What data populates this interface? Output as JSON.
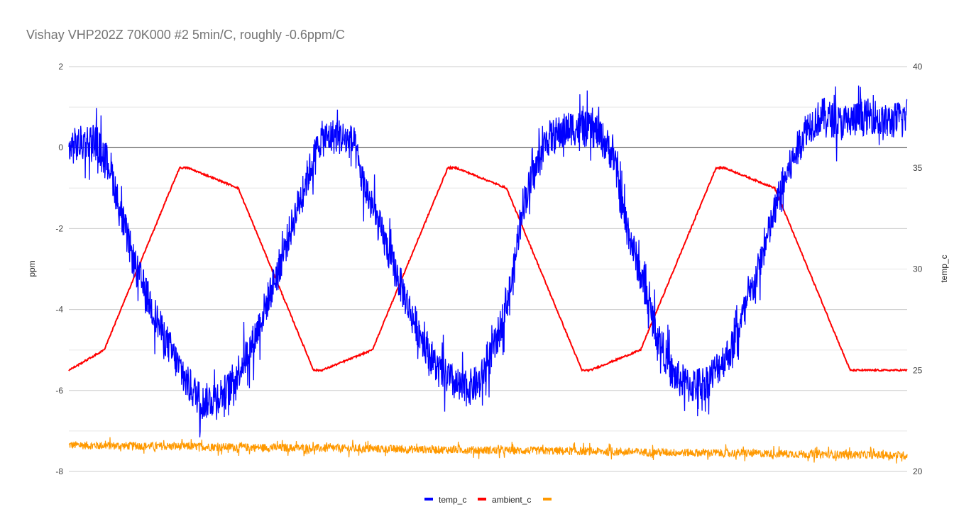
{
  "chart_data": {
    "type": "line",
    "title": "Vishay VHP202Z 70K000 #2 5min/C, roughly -0.6ppm/C",
    "ylabel_left": "ppm",
    "ylabel_right": "temp_c",
    "xlabel": "",
    "ylim_left": [
      -8,
      2
    ],
    "ylim_right": [
      20,
      40
    ],
    "yticks_left": [
      "2",
      "0",
      "-2",
      "-4",
      "-6",
      "-8"
    ],
    "yticks_right": [
      "40",
      "35",
      "30",
      "25",
      "20"
    ],
    "grid": true,
    "legend_position": "bottom",
    "x_range": [
      0,
      100
    ],
    "series": [
      {
        "name": "temp_c",
        "axis": "left",
        "color": "#0000ff",
        "noise": 0.45,
        "x": [
          0,
          3,
          5,
          6,
          8,
          11,
          14,
          16,
          19,
          22,
          25,
          28,
          30,
          32,
          34,
          35,
          38,
          41,
          44,
          47,
          49,
          51,
          53,
          54,
          57,
          60,
          63,
          65,
          66,
          68,
          70,
          72,
          74,
          76,
          79,
          82,
          85,
          88,
          90,
          92,
          94,
          96,
          97,
          99,
          100
        ],
        "values": [
          0.0,
          0.2,
          -0.5,
          -1.5,
          -3.0,
          -4.5,
          -5.8,
          -6.3,
          -6.0,
          -4.8,
          -3.0,
          -1.0,
          0.2,
          0.3,
          0.1,
          -0.8,
          -2.5,
          -4.2,
          -5.5,
          -6.0,
          -5.8,
          -4.8,
          -3.2,
          -1.5,
          0.2,
          0.5,
          0.4,
          -0.2,
          -1.5,
          -3.0,
          -4.5,
          -5.6,
          -5.9,
          -5.8,
          -5.0,
          -3.2,
          -1.0,
          0.5,
          0.8,
          0.6,
          0.7,
          0.8,
          0.6,
          0.7,
          0.8
        ]
      },
      {
        "name": "ambient_c",
        "axis": "right",
        "color": "#ff0000",
        "steps": {
          "x": [
            0,
            4.2,
            5.2,
            6.2,
            7.2,
            8.2,
            9.2,
            10.2,
            11.2,
            12.2,
            13.2,
            14.2,
            20.2,
            21.2,
            22.2,
            23.2,
            24.2,
            25.2,
            26.2,
            27.2,
            28.2,
            29.2,
            30.2,
            36.2,
            37.2,
            38.2,
            39.2,
            40.2,
            41.2,
            42.2,
            43.2,
            44.2,
            45.2,
            46.2,
            52.2,
            53.2,
            54.2,
            55.2,
            56.2,
            57.2,
            58.2,
            59.2,
            60.2,
            61.2,
            62.2,
            68.2,
            69.2,
            70.2,
            71.2,
            72.2,
            73.2,
            74.2,
            75.2,
            76.2,
            77.2,
            78.2,
            84.2,
            85.2,
            86.2,
            87.2,
            88.2,
            89.2,
            90.2,
            91.2,
            92.2,
            93.2,
            94.2,
            100
          ],
          "values": [
            25,
            26,
            27,
            28,
            29,
            30,
            31,
            32,
            33,
            34,
            35,
            35,
            34,
            33,
            32,
            31,
            30,
            29,
            28,
            27,
            26,
            25,
            25,
            26,
            27,
            28,
            29,
            30,
            31,
            32,
            33,
            34,
            35,
            35,
            34,
            33,
            32,
            31,
            30,
            29,
            28,
            27,
            26,
            25,
            25,
            26,
            27,
            28,
            29,
            30,
            31,
            32,
            33,
            34,
            35,
            35,
            34,
            33,
            32,
            31,
            30,
            29,
            28,
            27,
            26,
            25,
            25,
            25
          ]
        }
      },
      {
        "name": "",
        "axis": "right",
        "color": "#ff9900",
        "noise": 0.2,
        "x": [
          0,
          100
        ],
        "values": [
          21.3,
          20.8
        ]
      }
    ]
  }
}
